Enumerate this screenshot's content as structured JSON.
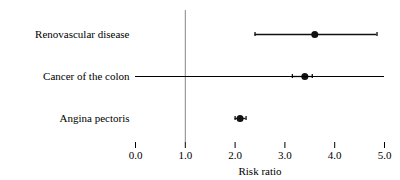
{
  "chart_data": {
    "type": "forest",
    "categories": [
      "Renovascular disease",
      "Cancer of the colon",
      "Angina pectoris"
    ],
    "values": [
      3.6,
      3.4,
      2.1
    ],
    "ci_low": [
      2.4,
      3.15,
      2.0
    ],
    "ci_high": [
      4.85,
      3.55,
      2.22
    ],
    "xlabel": "Risk ratio",
    "xlim": [
      0.0,
      5.0
    ],
    "xticks": [
      {
        "value": 0,
        "label": "0.0"
      },
      {
        "value": 1,
        "label": "1.0"
      },
      {
        "value": 2,
        "label": "2.0"
      },
      {
        "value": 3,
        "label": "3.0"
      },
      {
        "value": 4,
        "label": "4.0"
      },
      {
        "value": 5,
        "label": "5.0"
      }
    ],
    "reference_line": 1.0,
    "color": "#111111"
  }
}
